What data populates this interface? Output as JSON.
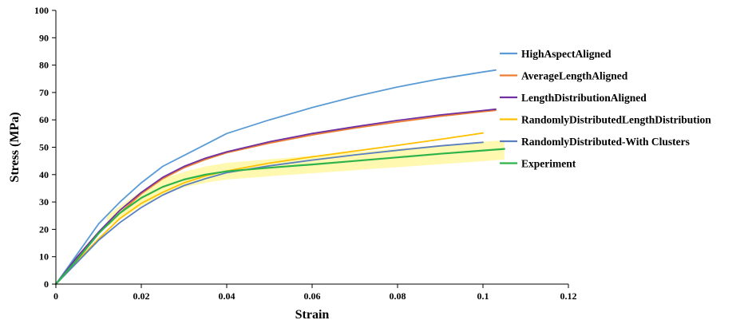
{
  "chart_data": {
    "type": "line",
    "title": "",
    "xlabel": "Strain",
    "ylabel": "Stress (MPa)",
    "xlim": [
      0,
      0.12
    ],
    "ylim": [
      0,
      100
    ],
    "x_ticks": [
      "0",
      "0.02",
      "0.04",
      "0.06",
      "0.08",
      "0.1",
      "0.12"
    ],
    "y_ticks": [
      "0",
      "10",
      "20",
      "30",
      "40",
      "50",
      "60",
      "70",
      "80",
      "90",
      "100"
    ],
    "grid": false,
    "legend_position": "right",
    "series": [
      {
        "name": "HighAspectAligned",
        "color": "#5b9bd5",
        "x": [
          0,
          0.005,
          0.01,
          0.015,
          0.02,
          0.025,
          0.03,
          0.035,
          0.04,
          0.05,
          0.06,
          0.07,
          0.08,
          0.09,
          0.1,
          0.103
        ],
        "y": [
          0,
          11,
          22,
          30,
          37,
          43,
          47,
          51,
          55,
          60,
          64.5,
          68.5,
          72,
          75,
          77.5,
          78.2
        ]
      },
      {
        "name": "AverageLengthAligned",
        "color": "#ed7d31",
        "x": [
          0,
          0.005,
          0.01,
          0.015,
          0.02,
          0.025,
          0.03,
          0.035,
          0.04,
          0.05,
          0.06,
          0.07,
          0.08,
          0.09,
          0.1,
          0.103
        ],
        "y": [
          0,
          9.5,
          18.5,
          26,
          33,
          38.5,
          42.5,
          45.5,
          48,
          51.5,
          54.5,
          57,
          59.2,
          61.3,
          63,
          63.5
        ]
      },
      {
        "name": "LengthDistributionAligned",
        "color": "#7030a0",
        "x": [
          0,
          0.005,
          0.01,
          0.015,
          0.02,
          0.025,
          0.03,
          0.035,
          0.04,
          0.05,
          0.06,
          0.07,
          0.08,
          0.09,
          0.1,
          0.103
        ],
        "y": [
          0,
          10,
          19,
          27,
          33.5,
          39,
          43,
          46,
          48.3,
          52,
          55,
          57.5,
          59.8,
          61.8,
          63.4,
          63.9
        ]
      },
      {
        "name": "RandomlyDistributedLengthDistribution",
        "color": "#ffc000",
        "x": [
          0,
          0.005,
          0.01,
          0.015,
          0.02,
          0.025,
          0.03,
          0.035,
          0.04,
          0.05,
          0.06,
          0.07,
          0.08,
          0.09,
          0.1
        ],
        "y": [
          0,
          8.5,
          16.5,
          24,
          29.5,
          33.5,
          37,
          39.5,
          41.3,
          44.2,
          46.5,
          48.6,
          50.7,
          52.9,
          55.2
        ]
      },
      {
        "name": "RandomlyDistributed-With Clusters",
        "color": "#5a7fc0",
        "x": [
          0,
          0.005,
          0.01,
          0.015,
          0.02,
          0.025,
          0.03,
          0.035,
          0.04,
          0.05,
          0.06,
          0.07,
          0.08,
          0.09,
          0.1
        ],
        "y": [
          0,
          8,
          16,
          22.5,
          28,
          32.5,
          36,
          38.5,
          40.7,
          43.2,
          45.3,
          47.2,
          48.9,
          50.5,
          51.8
        ]
      },
      {
        "name": "Experiment",
        "color": "#2db34a",
        "x": [
          0,
          0.005,
          0.01,
          0.015,
          0.02,
          0.025,
          0.03,
          0.035,
          0.04,
          0.05,
          0.06,
          0.07,
          0.08,
          0.09,
          0.1,
          0.105
        ],
        "y": [
          0,
          9,
          18.5,
          26,
          31.5,
          35.5,
          38.2,
          40,
          41.2,
          42.5,
          43.7,
          45,
          46.3,
          47.6,
          48.8,
          49.4
        ]
      }
    ],
    "band": {
      "color": "#fff7a8",
      "x": [
        0.012,
        0.015,
        0.02,
        0.025,
        0.03,
        0.035,
        0.04,
        0.05,
        0.06,
        0.07,
        0.08,
        0.09,
        0.1,
        0.105
      ],
      "upper": [
        25,
        28.5,
        34,
        38.5,
        41,
        43,
        44.3,
        45.6,
        46.9,
        48.2,
        49.5,
        50.8,
        52,
        52.6
      ],
      "lower": [
        21,
        23.5,
        28.5,
        32.5,
        35.4,
        37,
        38.2,
        39.4,
        40.5,
        41.6,
        42.7,
        43.8,
        44.9,
        45.5
      ]
    }
  }
}
